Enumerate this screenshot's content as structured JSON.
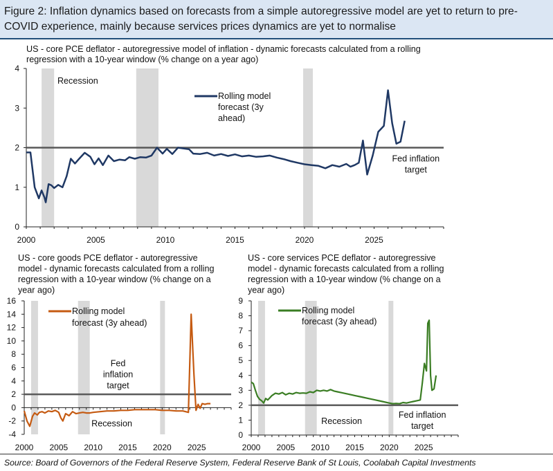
{
  "figure": {
    "title": "Figure 2: Inflation dynamics based on forecasts from a simple autoregressive model are yet to return to pre-COVID experience, mainly because services prices dynamics are yet to normalise",
    "source": "Source: Board of Governors of the Federal Reserve System, Federal Reserve Bank of St Louis, Coolabah Capital Investments"
  },
  "colors": {
    "header_bg": "#dbe6f3",
    "recession": "#d9d9d9",
    "target_line": "#595959",
    "top_series": "#1f3864",
    "goods_series": "#c55a11",
    "services_series": "#3a7d23"
  },
  "chart_data": [
    {
      "type": "line",
      "title_lines": [
        "US - core PCE deflator - autoregressive model of inflation - dynamic forecasts calculated from a rolling",
        "regression with a 10-year window (% change on a year ago)"
      ],
      "ylim": [
        0,
        4
      ],
      "yticks": [
        0,
        1,
        2,
        3,
        4
      ],
      "xlim": [
        2000,
        2030
      ],
      "xticks": [
        2000,
        2005,
        2010,
        2015,
        2020,
        2025
      ],
      "target": 2,
      "recessions": [
        [
          2001.1,
          2002.0
        ],
        [
          2007.9,
          2009.5
        ],
        [
          2019.9,
          2020.6
        ]
      ],
      "annotations": [
        {
          "text": "Recession",
          "x": 2003.7,
          "y": 3.62
        },
        {
          "lines": [
            "Fed inflation",
            "target"
          ],
          "x": 2028.0,
          "y": 1.65
        }
      ],
      "series": [
        {
          "name": "Rolling model forecast (3y ahead)",
          "legend_lines": [
            "Rolling model",
            "forecast (3y",
            "ahead)"
          ],
          "color": "#1f3864",
          "x": [
            2000.0,
            2000.3,
            2000.6,
            2000.9,
            2001.1,
            2001.3,
            2001.4,
            2001.6,
            2001.8,
            2002.0,
            2002.3,
            2002.6,
            2002.9,
            2003.2,
            2003.5,
            2003.8,
            2004.2,
            2004.6,
            2004.9,
            2005.2,
            2005.5,
            2005.9,
            2006.3,
            2006.7,
            2007.1,
            2007.4,
            2007.8,
            2008.2,
            2008.6,
            2009.0,
            2009.4,
            2009.8,
            2010.1,
            2010.5,
            2010.9,
            2011.3,
            2011.7,
            2012.0,
            2012.5,
            2013.0,
            2013.5,
            2014.0,
            2014.5,
            2015.0,
            2015.5,
            2016.0,
            2016.5,
            2017.0,
            2017.5,
            2018.0,
            2018.5,
            2019.0,
            2019.5,
            2020.0,
            2020.5,
            2021.0,
            2021.5,
            2022.0,
            2022.5,
            2023.0,
            2023.3,
            2023.6,
            2023.9,
            2024.2,
            2024.5,
            2024.9,
            2025.3,
            2025.7,
            2026.0,
            2026.3,
            2026.6,
            2026.9,
            2027.2
          ],
          "values": [
            1.88,
            1.88,
            1.0,
            0.72,
            0.92,
            0.75,
            0.62,
            1.08,
            1.05,
            0.98,
            1.06,
            1.0,
            1.28,
            1.72,
            1.6,
            1.72,
            1.87,
            1.77,
            1.58,
            1.73,
            1.56,
            1.8,
            1.66,
            1.7,
            1.68,
            1.76,
            1.72,
            1.76,
            1.75,
            1.8,
            2.0,
            1.85,
            1.97,
            1.84,
            2.0,
            1.98,
            1.96,
            1.85,
            1.84,
            1.87,
            1.8,
            1.84,
            1.79,
            1.83,
            1.78,
            1.8,
            1.77,
            1.78,
            1.8,
            1.75,
            1.71,
            1.66,
            1.62,
            1.58,
            1.56,
            1.54,
            1.48,
            1.56,
            1.52,
            1.59,
            1.52,
            1.56,
            1.62,
            2.18,
            1.32,
            1.8,
            2.4,
            2.55,
            3.45,
            2.62,
            2.1,
            2.15,
            2.68
          ]
        }
      ]
    },
    {
      "type": "line",
      "title_lines": [
        "US - core goods PCE deflator - autoregressive",
        "model - dynamic forecasts calculated from a rolling",
        "regression with a 10-year window (% change on a",
        "year ago)"
      ],
      "ylim": [
        -4,
        16
      ],
      "yticks": [
        -4,
        -2,
        0,
        2,
        4,
        6,
        8,
        10,
        12,
        14,
        16
      ],
      "xlim": [
        2000,
        2030
      ],
      "xticks": [
        2000,
        2005,
        2010,
        2015,
        2020,
        2025
      ],
      "target": 2,
      "recessions": [
        [
          2001.0,
          2002.0
        ],
        [
          2007.8,
          2009.5
        ],
        [
          2019.7,
          2020.4
        ]
      ],
      "annotations": [
        {
          "lines": [
            "Fed",
            "inflation",
            "target"
          ],
          "x": 2013.6,
          "y": 6.2
        },
        {
          "text": "Recession",
          "x": 2012.7,
          "y": -2.8
        }
      ],
      "series": [
        {
          "name": "Rolling model forecast (3y ahead)",
          "legend_lines": [
            "Rolling model",
            "forecast (3y ahead)"
          ],
          "color": "#c55a11",
          "x": [
            2000.0,
            2000.4,
            2000.8,
            2001.2,
            2001.5,
            2001.9,
            2002.2,
            2002.6,
            2003.0,
            2003.5,
            2004.0,
            2004.5,
            2005.0,
            2005.3,
            2005.6,
            2006.0,
            2006.5,
            2007.0,
            2007.5,
            2008.0,
            2008.5,
            2009.0,
            2009.5,
            2010.0,
            2011.0,
            2012.0,
            2013.0,
            2014.0,
            2015.0,
            2016.0,
            2017.0,
            2018.0,
            2019.0,
            2020.0,
            2021.0,
            2022.0,
            2023.0,
            2023.8,
            2024.2,
            2024.6,
            2024.9,
            2025.2,
            2025.5,
            2025.8,
            2026.2,
            2026.6,
            2027.0
          ],
          "values": [
            -0.5,
            -2.0,
            -2.8,
            -1.3,
            -0.8,
            -1.1,
            -0.7,
            -0.6,
            -0.8,
            -0.5,
            -0.6,
            -0.4,
            -0.7,
            -1.5,
            -2.0,
            -0.9,
            -1.2,
            -0.6,
            -0.9,
            -0.8,
            -0.7,
            -0.8,
            -0.8,
            -0.7,
            -0.6,
            -0.5,
            -0.5,
            -0.4,
            -0.4,
            -0.3,
            -0.3,
            -0.3,
            -0.3,
            -0.4,
            -0.4,
            -0.5,
            -0.5,
            -0.7,
            14.0,
            5.0,
            -0.4,
            0.5,
            -0.1,
            0.6,
            0.5,
            0.6,
            0.6
          ]
        }
      ]
    },
    {
      "type": "line",
      "title_lines": [
        "US - core services PCE deflator - autoregressive",
        "model - dynamic forecasts calculated from a rolling",
        "regression with a 10-year window (% change on a",
        "year ago)"
      ],
      "ylim": [
        0,
        9
      ],
      "yticks": [
        0,
        1,
        2,
        3,
        4,
        5,
        6,
        7,
        8,
        9
      ],
      "xlim": [
        2000,
        2030
      ],
      "xticks": [
        2000,
        2005,
        2010,
        2015,
        2020,
        2025
      ],
      "target": 2,
      "recessions": [
        [
          2001.0,
          2002.0
        ],
        [
          2007.8,
          2009.5
        ],
        [
          2019.9,
          2020.6
        ]
      ],
      "annotations": [
        {
          "text": "Recession",
          "x": 2013.1,
          "y": 0.75
        },
        {
          "lines": [
            "Fed inflation",
            "target"
          ],
          "x": 2024.8,
          "y": 1.15
        }
      ],
      "series": [
        {
          "name": "Rolling model forecast (3y ahead)",
          "legend_lines": [
            "Rolling model",
            "forecast (3y ahead)"
          ],
          "color": "#3a7d23",
          "x": [
            2000.0,
            2000.3,
            2000.6,
            2000.9,
            2001.2,
            2001.5,
            2001.8,
            2002.1,
            2002.4,
            2002.7,
            2003.0,
            2003.5,
            2004.0,
            2004.5,
            2005.0,
            2005.5,
            2006.0,
            2006.5,
            2007.0,
            2007.5,
            2008.0,
            2008.5,
            2009.0,
            2009.5,
            2010.0,
            2010.5,
            2011.0,
            2011.5,
            2012.0,
            2012.5,
            2013.0,
            2014.0,
            2015.0,
            2016.0,
            2017.0,
            2018.0,
            2019.0,
            2020.0,
            2020.5,
            2021.0,
            2021.5,
            2022.0,
            2022.5,
            2023.0,
            2023.5,
            2024.0,
            2024.5,
            2024.8,
            2025.1,
            2025.4,
            2025.6,
            2025.8,
            2026.0,
            2026.2,
            2026.5,
            2026.8
          ],
          "values": [
            3.55,
            3.45,
            3.0,
            2.6,
            2.4,
            2.3,
            2.15,
            2.45,
            2.35,
            2.5,
            2.65,
            2.8,
            2.75,
            2.85,
            2.7,
            2.8,
            2.75,
            2.85,
            2.8,
            2.82,
            2.8,
            2.9,
            2.85,
            3.0,
            2.95,
            3.0,
            2.95,
            3.05,
            2.95,
            2.9,
            2.85,
            2.75,
            2.65,
            2.55,
            2.45,
            2.35,
            2.25,
            2.15,
            2.1,
            2.12,
            2.1,
            2.18,
            2.15,
            2.2,
            2.25,
            2.3,
            2.35,
            3.5,
            4.8,
            4.3,
            7.5,
            7.7,
            4.0,
            3.0,
            3.1,
            4.0
          ]
        }
      ]
    }
  ]
}
